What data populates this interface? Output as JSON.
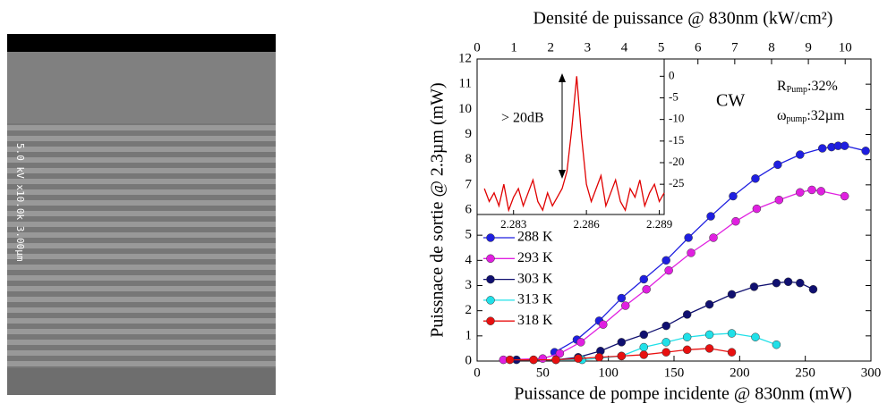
{
  "image": {
    "caption": "5.0 kV x10.0k 3.00µm"
  },
  "chart_data": [
    {
      "type": "line",
      "x_label": "Puissance de pompe incidente @ 830nm (mW)",
      "y_label": "Puissnace de sortie @ 2.3µm (mW)",
      "x2_label": "Densité de puissance @ 830nm (kW/cm²)",
      "xlim": [
        0,
        300
      ],
      "xticks": [
        0,
        50,
        100,
        150,
        200,
        250,
        300
      ],
      "ylim": [
        0,
        12
      ],
      "yticks": [
        0,
        1,
        2,
        3,
        4,
        5,
        6,
        7,
        8,
        9,
        10,
        11,
        12
      ],
      "x2lim": [
        0,
        10.7
      ],
      "x2ticks": [
        0,
        1,
        2,
        3,
        4,
        5,
        6,
        7,
        8,
        9,
        10
      ],
      "legend": "lower left",
      "annotations": {
        "cw": "CW",
        "r": "R",
        "r_sub": "Pump",
        "r_val": ":32%",
        "w": "ω",
        "w_sub": "pump",
        "w_val": ":32µm"
      },
      "series": [
        {
          "name": "288 K",
          "color": "#1f1fe0",
          "x": [
            59,
            76,
            93,
            110,
            127,
            144,
            161,
            178,
            195,
            212,
            229,
            246,
            263,
            270,
            275,
            280,
            296
          ],
          "values": [
            0.35,
            0.85,
            1.6,
            2.5,
            3.25,
            4.0,
            4.9,
            5.75,
            6.55,
            7.25,
            7.8,
            8.2,
            8.45,
            8.5,
            8.55,
            8.55,
            8.35
          ]
        },
        {
          "name": "293 K",
          "color": "#e020e0",
          "x": [
            20,
            50,
            63,
            79,
            96,
            113,
            129,
            146,
            163,
            180,
            197,
            213,
            230,
            246,
            255,
            262,
            280
          ],
          "values": [
            0.05,
            0.1,
            0.3,
            0.75,
            1.45,
            2.2,
            2.85,
            3.6,
            4.3,
            4.9,
            5.55,
            6.05,
            6.4,
            6.7,
            6.8,
            6.75,
            6.55
          ]
        },
        {
          "name": "303 K",
          "color": "#101070",
          "x": [
            30,
            60,
            77,
            94,
            110,
            127,
            144,
            160,
            177,
            194,
            211,
            228,
            237,
            246,
            256
          ],
          "values": [
            0.05,
            0.05,
            0.15,
            0.4,
            0.75,
            1.05,
            1.4,
            1.85,
            2.25,
            2.65,
            2.95,
            3.1,
            3.15,
            3.1,
            2.85
          ]
        },
        {
          "name": "313 K",
          "color": "#20e0e8",
          "x": [
            43,
            80,
            110,
            127,
            144,
            160,
            177,
            194,
            212,
            228
          ],
          "values": [
            0.05,
            0.05,
            0.2,
            0.55,
            0.75,
            0.95,
            1.05,
            1.1,
            0.95,
            0.65
          ]
        },
        {
          "name": "318 K",
          "color": "#e81010",
          "x": [
            25,
            43,
            60,
            77,
            93,
            110,
            127,
            144,
            160,
            177,
            194
          ],
          "values": [
            0.05,
            0.05,
            0.05,
            0.1,
            0.15,
            0.2,
            0.25,
            0.35,
            0.45,
            0.5,
            0.35
          ]
        }
      ]
    },
    {
      "type": "line",
      "color": "#e00000",
      "annotation": "> 20dB",
      "xlim": [
        2.2815,
        2.2892
      ],
      "xticks": [
        2.283,
        2.286,
        2.289
      ],
      "ylim": [
        -32,
        4
      ],
      "yticks": [
        0,
        -5,
        -10,
        -15,
        -20,
        -25
      ],
      "x": [
        2.2818,
        2.282,
        2.2822,
        2.2824,
        2.2826,
        2.2828,
        2.283,
        2.2832,
        2.2834,
        2.2836,
        2.2838,
        2.284,
        2.2842,
        2.2844,
        2.2846,
        2.2848,
        2.285,
        2.2852,
        2.2854,
        2.2856,
        2.2858,
        2.286,
        2.2862,
        2.2864,
        2.2866,
        2.2868,
        2.287,
        2.2872,
        2.2874,
        2.2876,
        2.2878,
        2.288,
        2.2882,
        2.2884,
        2.2886,
        2.2888,
        2.289,
        2.2892
      ],
      "values": [
        -26,
        -29,
        -27,
        -30,
        -25,
        -31,
        -28,
        -26,
        -30,
        -27,
        -24,
        -29,
        -31,
        -27,
        -30,
        -28,
        -26,
        -22,
        -12,
        0,
        -14,
        -25,
        -29,
        -26,
        -23,
        -30,
        -27,
        -24,
        -29,
        -31,
        -26,
        -28,
        -24,
        -30,
        -27,
        -25,
        -29,
        -27
      ]
    }
  ]
}
